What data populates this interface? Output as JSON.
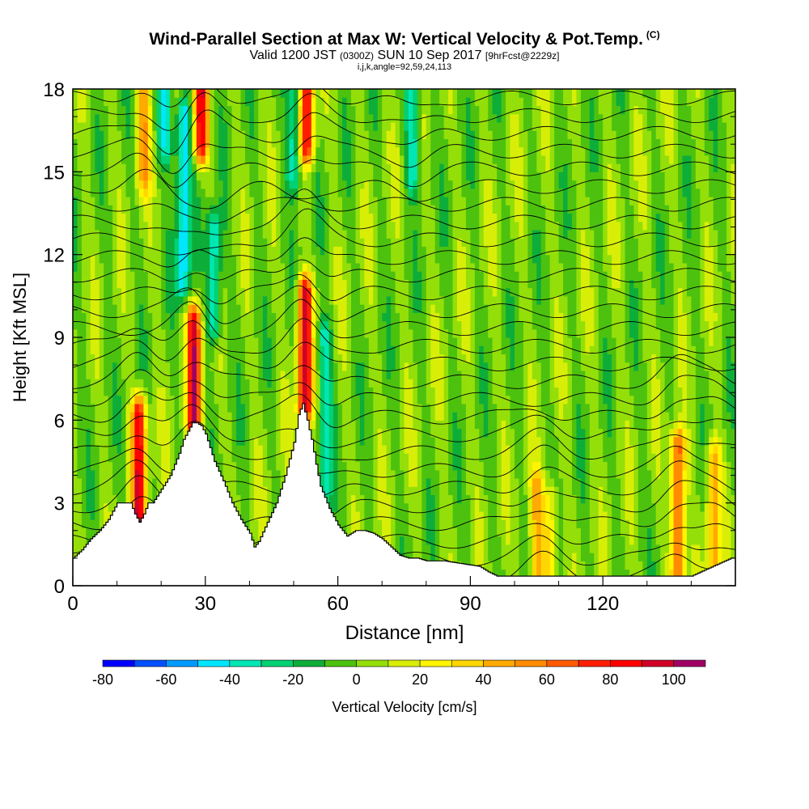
{
  "header": {
    "title": "Wind-Parallel Section at Max W: Vertical Velocity & Pot.Temp.",
    "copyright": "(C)",
    "valid_prefix": "Valid 1200 JST",
    "valid_zulu": "(0300Z)",
    "valid_date": "SUN 10 Sep 2017",
    "forecast": "[9hrFcst@2229z]",
    "indices": "i,j,k,angle=92,59,24,113"
  },
  "chart_data": {
    "type": "heatmap",
    "title": "Wind-Parallel Section at Max W: Vertical Velocity & Pot.Temp.",
    "xlabel": "Distance [nm]",
    "ylabel": "Height [Kft MSL]",
    "xlim": [
      0,
      150
    ],
    "ylim": [
      0,
      18
    ],
    "x_ticks": [
      0,
      30,
      60,
      90,
      120
    ],
    "y_ticks": [
      0,
      3,
      6,
      9,
      12,
      15,
      18
    ],
    "grid": false,
    "terrain_profile": {
      "x": [
        0,
        2,
        4,
        6,
        8,
        10,
        13,
        14,
        15,
        16,
        17,
        18,
        20,
        22,
        24,
        25,
        26,
        27,
        28,
        29,
        30,
        31,
        32,
        34,
        36,
        38,
        40,
        41,
        42,
        44,
        46,
        48,
        50,
        51,
        52,
        53,
        54,
        55,
        56,
        58,
        60,
        62,
        64,
        66,
        68,
        70,
        72,
        74,
        76,
        78,
        80,
        84,
        88,
        92,
        94,
        96,
        100,
        110,
        120,
        130,
        140,
        149,
        150
      ],
      "height": [
        1.0,
        1.3,
        1.7,
        2.0,
        2.4,
        3.0,
        3.0,
        2.6,
        2.3,
        2.6,
        3.0,
        3.0,
        3.5,
        4.0,
        4.8,
        5.3,
        5.6,
        5.9,
        5.9,
        5.8,
        5.5,
        5.0,
        4.5,
        3.8,
        3.0,
        2.4,
        1.9,
        1.4,
        1.6,
        2.3,
        3.0,
        4.0,
        5.2,
        6.2,
        6.6,
        6.0,
        5.3,
        4.4,
        3.6,
        2.8,
        2.2,
        1.8,
        2.0,
        2.0,
        1.9,
        1.7,
        1.4,
        1.1,
        1.0,
        1.0,
        0.9,
        0.9,
        0.8,
        0.7,
        0.5,
        0.35,
        0.35,
        0.35,
        0.35,
        0.35,
        0.35,
        1.0,
        1.0
      ]
    },
    "vertical_velocity_cores": [
      {
        "x": 15,
        "z_bottom": 2.4,
        "z_top": 6.2,
        "w": 85
      },
      {
        "x": 27.5,
        "z_bottom": 5.8,
        "z_top": 9.5,
        "w": 90
      },
      {
        "x": 52.5,
        "z_bottom": 6.5,
        "z_top": 10.5,
        "w": 95
      },
      {
        "x": 29,
        "z_bottom": 16.0,
        "z_top": 18.0,
        "w": 85
      },
      {
        "x": 53,
        "z_bottom": 16.0,
        "z_top": 18.0,
        "w": 80
      },
      {
        "x": 16,
        "z_bottom": 15.0,
        "z_top": 18.0,
        "w": 45
      },
      {
        "x": 137,
        "z_bottom": 0.4,
        "z_top": 5.0,
        "w": 70
      },
      {
        "x": 145,
        "z_bottom": 0.4,
        "z_top": 4.5,
        "w": 45
      },
      {
        "x": 105,
        "z_bottom": 0.4,
        "z_top": 3.5,
        "w": 40
      },
      {
        "x": 108,
        "z_bottom": 0.4,
        "z_top": 3.0,
        "w": 35
      },
      {
        "x": 21,
        "z_bottom": 16.0,
        "z_top": 18.0,
        "w": -45
      },
      {
        "x": 25,
        "z_bottom": 11.0,
        "z_top": 17.0,
        "w": -50
      },
      {
        "x": 32,
        "z_bottom": 9.5,
        "z_top": 13.0,
        "w": -45
      },
      {
        "x": 50,
        "z_bottom": 15.0,
        "z_top": 18.0,
        "w": -40
      },
      {
        "x": 57,
        "z_bottom": 3.5,
        "z_top": 9.0,
        "w": -35
      },
      {
        "x": 77,
        "z_bottom": 15.0,
        "z_top": 18.0,
        "w": -40
      }
    ],
    "theta_isentropes": {
      "count": 28,
      "label": "Pot.Temp."
    },
    "colorbar": {
      "title": "Vertical Velocity [cm/s]",
      "bounds": [
        -80,
        -70,
        -60,
        -50,
        -40,
        -30,
        -20,
        -10,
        0,
        10,
        20,
        30,
        40,
        50,
        60,
        70,
        80,
        90,
        100,
        110
      ],
      "colors": [
        "#0000ff",
        "#0050ff",
        "#009bff",
        "#00e6ff",
        "#00e6b4",
        "#00d173",
        "#0dad3a",
        "#4cc20f",
        "#94df09",
        "#d9ee07",
        "#fff500",
        "#ffd700",
        "#ffaa00",
        "#ff8c00",
        "#ff5a00",
        "#ff1f00",
        "#ff0000",
        "#d20028",
        "#a00064"
      ],
      "tick_labels": [
        "-80",
        "-60",
        "-40",
        "-20",
        "0",
        "20",
        "40",
        "60",
        "80",
        "100"
      ],
      "tick_values": [
        -80,
        -60,
        -40,
        -20,
        0,
        20,
        40,
        60,
        80,
        100
      ]
    }
  }
}
